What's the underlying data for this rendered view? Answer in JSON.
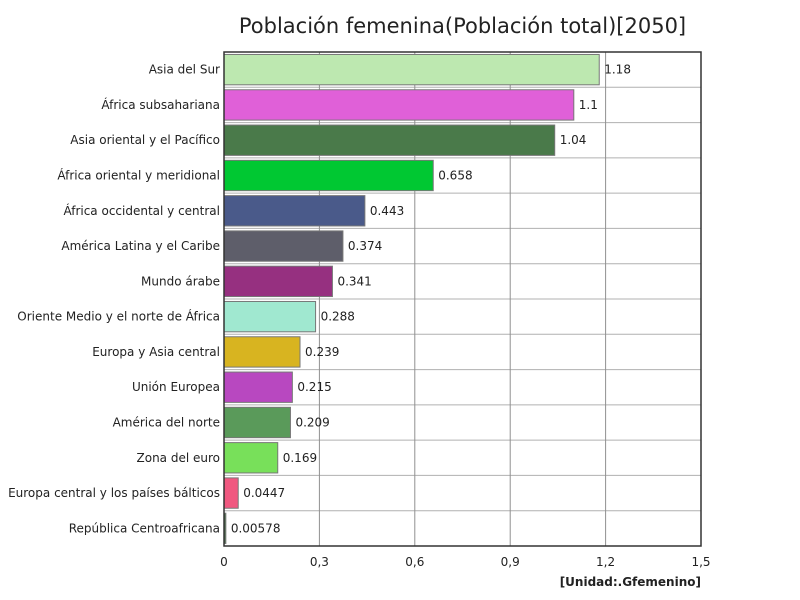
{
  "chart_data": {
    "type": "bar",
    "orientation": "horizontal",
    "title": "Población femenina(Población total)[2050]",
    "unit": "[Unidad:.Gfemenino]",
    "xlim": [
      0,
      1.5
    ],
    "x_ticks": [
      0,
      0.3,
      0.6,
      0.9,
      1.2,
      1.5
    ],
    "x_tick_labels": [
      "0",
      "0,3",
      "0,6",
      "0,9",
      "1,2",
      "1,5"
    ],
    "grid": true,
    "categories": [
      "Asia del Sur",
      "África subsahariana",
      "Asia oriental y el Pacífico",
      "África oriental y meridional",
      "África occidental y central",
      "América Latina y el Caribe",
      "Mundo árabe",
      "Oriente Medio y el norte de África",
      "Europa y Asia central",
      "Unión Europea",
      "América del norte",
      "Zona del euro",
      "Europa central y los países bálticos",
      "República Centroafricana"
    ],
    "values": [
      1.18,
      1.1,
      1.04,
      0.658,
      0.443,
      0.374,
      0.341,
      0.288,
      0.239,
      0.215,
      0.209,
      0.169,
      0.0447,
      0.00578
    ],
    "value_labels": [
      "1.18",
      "1.1",
      "1.04",
      "0.658",
      "0.443",
      "0.374",
      "0.341",
      "0.288",
      "0.239",
      "0.215",
      "0.209",
      "0.169",
      "0.0447",
      "0.00578"
    ],
    "colors": [
      "#bde8b0",
      "#e060d8",
      "#4a7a4a",
      "#00c832",
      "#4a5a8a",
      "#5e5e6a",
      "#963080",
      "#a0e8d0",
      "#d8b420",
      "#b848c0",
      "#5a9a5a",
      "#78e05a",
      "#f05880",
      "#4a7a4a"
    ]
  }
}
